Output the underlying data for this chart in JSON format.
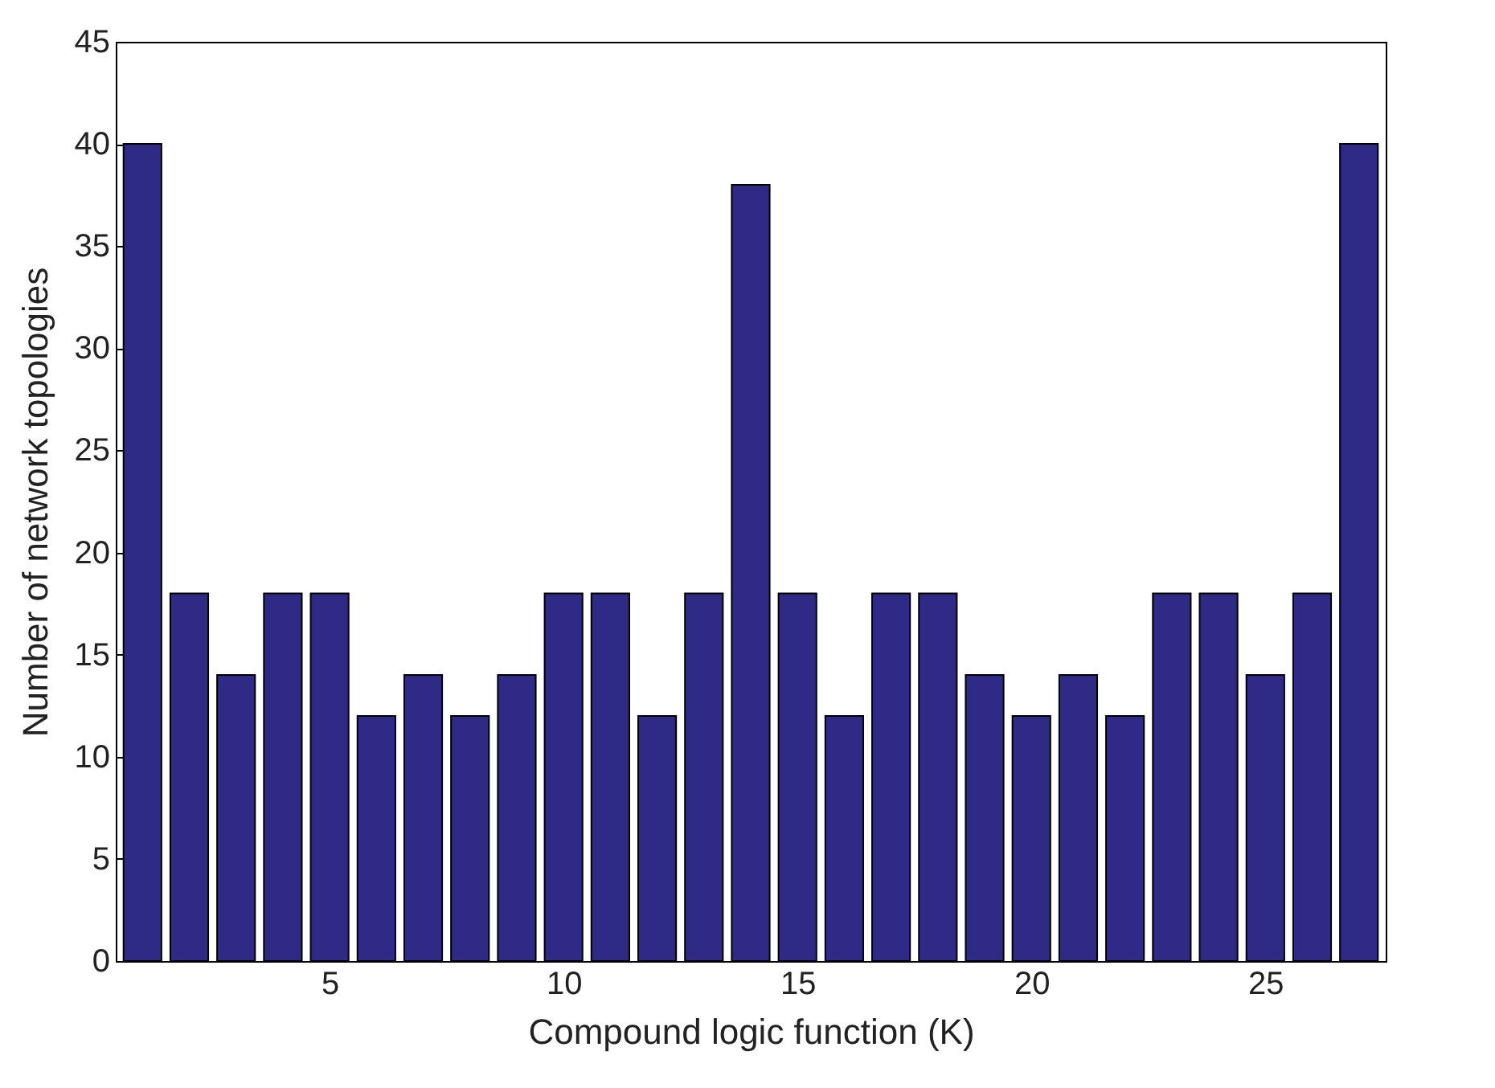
{
  "chart_data": {
    "type": "bar",
    "xlabel": "Compound logic function (K)",
    "ylabel": "Number of network topologies",
    "x": [
      1,
      2,
      3,
      4,
      5,
      6,
      7,
      8,
      9,
      10,
      11,
      12,
      13,
      14,
      15,
      16,
      17,
      18,
      19,
      20,
      21,
      22,
      23,
      24,
      25,
      26,
      27
    ],
    "values": [
      40,
      18,
      14,
      18,
      18,
      12,
      14,
      12,
      14,
      18,
      18,
      12,
      18,
      38,
      18,
      12,
      18,
      18,
      14,
      12,
      14,
      12,
      18,
      18,
      14,
      18,
      40
    ],
    "color": "#2e2a85",
    "xlim": [
      0.6,
      27.4
    ],
    "xticks": [
      5,
      10,
      15,
      20,
      25
    ],
    "ylim": [
      0,
      45
    ],
    "yticks": [
      0,
      5,
      10,
      15,
      20,
      25,
      30,
      35,
      40,
      45
    ],
    "grid": false
  }
}
